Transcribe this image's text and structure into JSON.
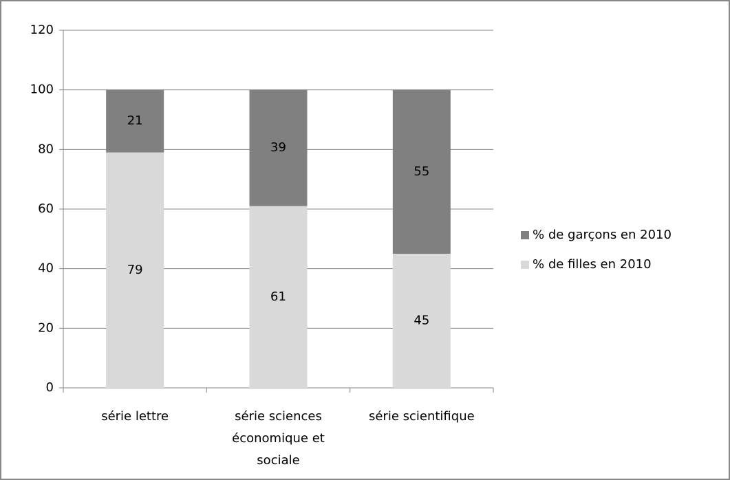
{
  "chart_data": {
    "type": "stacked_bar",
    "categories": [
      "série lettre",
      "série sciences économique et sociale",
      "série scientifique"
    ],
    "series": [
      {
        "name": "% de filles en 2010",
        "color": "#d9d9d9",
        "values": [
          79,
          61,
          45
        ]
      },
      {
        "name": "% de garçons en 2010",
        "color": "#808080",
        "values": [
          21,
          39,
          55
        ]
      }
    ],
    "ylim": [
      0,
      120
    ],
    "yticks": [
      0,
      20,
      40,
      60,
      80,
      100,
      120
    ],
    "grid": true,
    "legend": "right"
  }
}
